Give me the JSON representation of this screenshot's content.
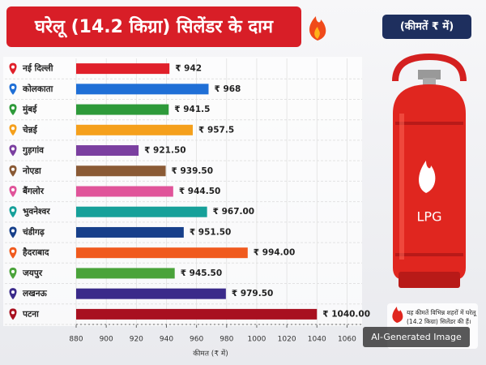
{
  "chart_data": {
    "type": "bar",
    "orientation": "horizontal",
    "title": "घरेलू (14.2 किग्रा) सिलेंडर के दाम",
    "badge": "(कीमतें ₹ में)",
    "x_label": "कीमत (₹ में)",
    "categories": [
      "नई दिल्ली",
      "कोलकाता",
      "मुंबई",
      "चेन्नई",
      "गुड़गांव",
      "नोएडा",
      "बैंगलोर",
      "भुवनेश्वर",
      "चंडीगढ़",
      "हैदराबाद",
      "जयपुर",
      "लखनऊ",
      "पटना"
    ],
    "values": [
      942,
      968,
      941.5,
      957.5,
      921.5,
      939.5,
      944.5,
      967,
      951.5,
      994,
      945.5,
      979.5,
      1040
    ],
    "value_labels": [
      "₹ 942",
      "₹ 968",
      "₹ 941.5",
      "₹ 957.5",
      "₹ 921.50",
      "₹ 939.50",
      "₹ 944.50",
      "₹ 967.00",
      "₹ 951.50",
      "₹ 994.00",
      "₹ 945.50",
      "₹ 979.50",
      "₹ 1040.00"
    ],
    "colors": [
      "#e0202a",
      "#1f6fd6",
      "#2e9a3a",
      "#f5a01c",
      "#7b3fa0",
      "#8a5a35",
      "#e0549a",
      "#16a09a",
      "#173f8a",
      "#f05a1e",
      "#4aa33a",
      "#3a2a8a",
      "#a81020"
    ],
    "xlim": [
      880,
      1070
    ],
    "xticks": [
      880,
      900,
      920,
      940,
      960,
      980,
      1000,
      1020,
      1040,
      1060
    ],
    "grid": true,
    "cylinder_label": "LPG",
    "note": "यह कीमतें विभिन्न शहरों में घरेलू (14.2 किग्रा) सिलेंडर की हैं।",
    "watermark": "AI-Generated Image"
  }
}
